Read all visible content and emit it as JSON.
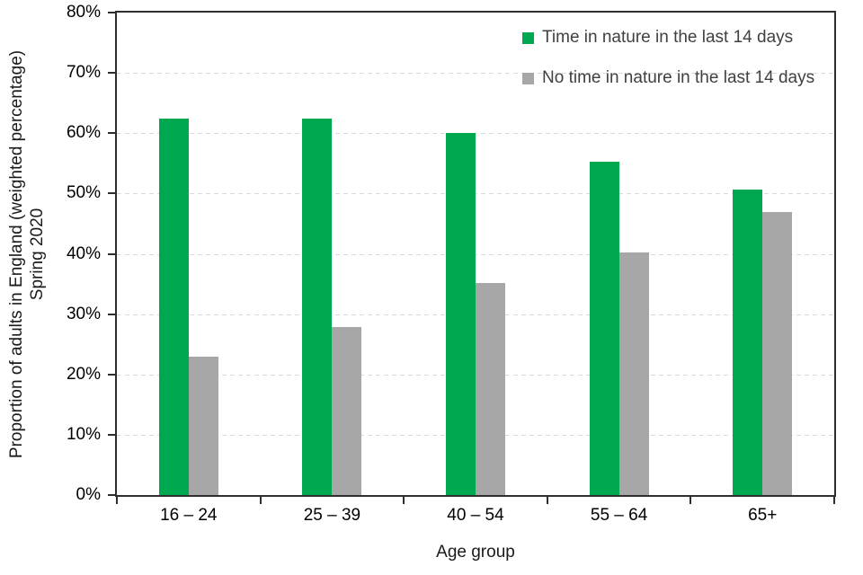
{
  "chart_data": {
    "type": "bar",
    "title": "",
    "xlabel": "Age group",
    "ylabel_line1": "Proportion of adults in England (weighted percentage)",
    "ylabel_line2": "Spring 2020",
    "categories": [
      "16 – 24",
      "25 – 39",
      "40 – 54",
      "55 – 64",
      "65+"
    ],
    "series": [
      {
        "name": "Time in nature in the last 14 days",
        "color": "#00a84f",
        "values": [
          62.4,
          62.4,
          60.0,
          55.2,
          50.7
        ]
      },
      {
        "name": "No time in nature in the last 14 days",
        "color": "#a7a7a7",
        "values": [
          23.0,
          27.8,
          35.2,
          40.2,
          46.9
        ]
      }
    ],
    "ylim": [
      0,
      80
    ],
    "ytick_step": 10,
    "ytick_suffix": "%",
    "grid": "horizontal dashed",
    "legend_position": "top-right inside plot"
  },
  "colors": {
    "axis_line": "#2e2e2e",
    "gridline": "#d9d9d9",
    "tick_label": "#000000",
    "legend_text": "#404040",
    "axis_title_text": "#1a1a1a",
    "background": "#ffffff"
  }
}
